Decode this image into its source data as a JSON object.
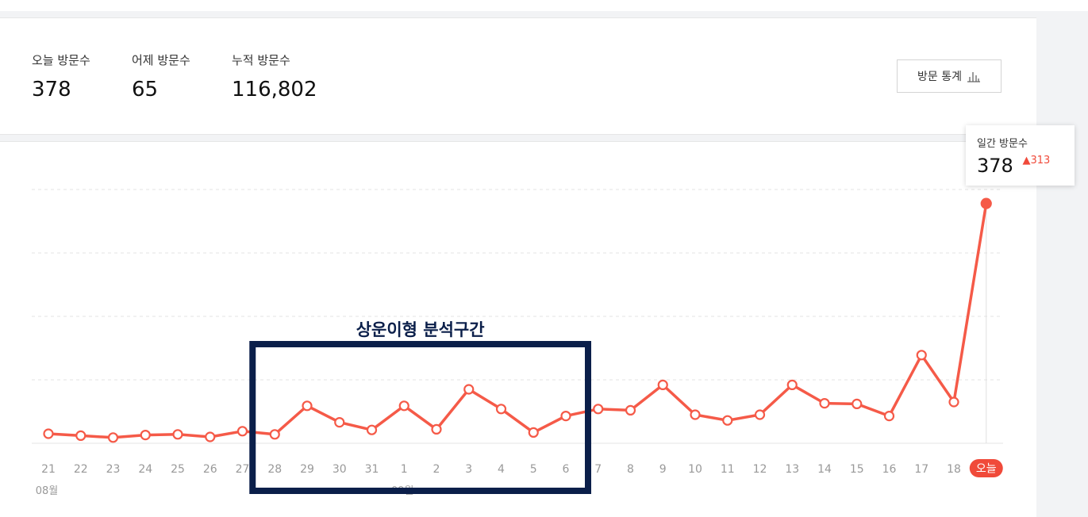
{
  "stats": [
    {
      "label": "오늘 방문수",
      "value": "378"
    },
    {
      "label": "어제 방문수",
      "value": "65"
    },
    {
      "label": "누적 방문수",
      "value": "116,802"
    }
  ],
  "stats_button": {
    "label": "방문 통계",
    "icon": "bar-chart-icon"
  },
  "tooltip": {
    "label": "일간 방문수",
    "value": "378",
    "delta": "313",
    "delta_icon": "up-triangle-icon"
  },
  "annotation": {
    "label": "상운이형 분석구간",
    "color": "#0b1f4a"
  },
  "month_labels": [
    {
      "label": "08월",
      "at_index": 0
    },
    {
      "label": "09월",
      "at_index": 11
    }
  ],
  "colors": {
    "line": "#f55a48",
    "today_badge": "#f04a3a",
    "grid": "#e3e3e3",
    "highlight_box": "#0b1f4a"
  },
  "chart_data": {
    "type": "line",
    "x": [
      "21",
      "22",
      "23",
      "24",
      "25",
      "26",
      "27",
      "28",
      "29",
      "30",
      "31",
      "1",
      "2",
      "3",
      "4",
      "5",
      "6",
      "7",
      "8",
      "9",
      "10",
      "11",
      "12",
      "13",
      "14",
      "15",
      "16",
      "17",
      "18",
      "오늘"
    ],
    "values": [
      15,
      12,
      9,
      13,
      14,
      10,
      19,
      14,
      59,
      33,
      21,
      59,
      22,
      85,
      54,
      17,
      43,
      54,
      52,
      92,
      45,
      36,
      45,
      92,
      63,
      62,
      43,
      139,
      65,
      378
    ],
    "ylim": [
      0,
      400
    ],
    "grid": true,
    "highlight_range": [
      "28",
      "6"
    ]
  }
}
